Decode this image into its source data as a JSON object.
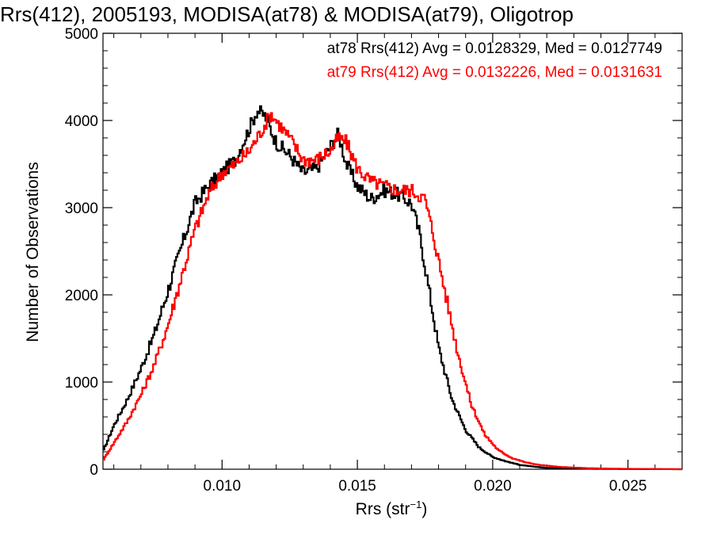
{
  "chart_data": {
    "type": "line",
    "title": "Rrs(412), 2005193, MODISA(at78) & MODISA(at79), Oligotrop",
    "xlabel": {
      "main": "Rrs (str",
      "sup": "−1",
      "close": ")"
    },
    "ylabel": "Number of Observations",
    "xlim": [
      0.0056,
      0.027
    ],
    "ylim": [
      0,
      5000
    ],
    "xticks": [
      0.01,
      0.015,
      0.02,
      0.025
    ],
    "xtick_labels": [
      "0.010",
      "0.015",
      "0.020",
      "0.025"
    ],
    "yticks": [
      0,
      1000,
      2000,
      3000,
      4000,
      5000
    ],
    "ytick_labels": [
      "0",
      "1000",
      "2000",
      "3000",
      "4000",
      "5000"
    ],
    "grid": false,
    "legend_position": "top-right",
    "series": [
      {
        "name": "at78",
        "annotation": "at78 Rrs(412) Avg = 0.0128329, Med = 0.0127749",
        "color": "#000000",
        "x": [
          0.0056,
          0.006,
          0.0065,
          0.007,
          0.0075,
          0.008,
          0.0085,
          0.009,
          0.0095,
          0.01,
          0.0105,
          0.011,
          0.0113,
          0.0116,
          0.012,
          0.0125,
          0.013,
          0.0135,
          0.014,
          0.0143,
          0.0146,
          0.015,
          0.0155,
          0.016,
          0.0165,
          0.017,
          0.0173,
          0.0176,
          0.018,
          0.0185,
          0.019,
          0.0195,
          0.02,
          0.0205,
          0.021,
          0.0215,
          0.022,
          0.023,
          0.024,
          0.025,
          0.027
        ],
        "y": [
          200,
          500,
          800,
          1150,
          1550,
          2050,
          2550,
          3050,
          3250,
          3400,
          3550,
          3900,
          4120,
          4050,
          3750,
          3600,
          3400,
          3450,
          3700,
          3850,
          3500,
          3250,
          3100,
          3200,
          3150,
          3050,
          2700,
          2150,
          1400,
          800,
          450,
          250,
          140,
          90,
          50,
          30,
          15,
          8,
          4,
          2,
          0
        ]
      },
      {
        "name": "at79",
        "annotation": "at79 Rrs(412) Avg = 0.0132226, Med = 0.0131631",
        "color": "#ff0000",
        "x": [
          0.0056,
          0.006,
          0.0065,
          0.007,
          0.0075,
          0.008,
          0.0085,
          0.009,
          0.0095,
          0.01,
          0.0105,
          0.011,
          0.0115,
          0.0118,
          0.012,
          0.0125,
          0.013,
          0.0135,
          0.014,
          0.0143,
          0.0146,
          0.015,
          0.0155,
          0.016,
          0.0165,
          0.017,
          0.0175,
          0.0178,
          0.0182,
          0.0187,
          0.0192,
          0.0197,
          0.0202,
          0.0207,
          0.0212,
          0.0217,
          0.0225,
          0.0235,
          0.0245,
          0.0255,
          0.027
        ],
        "y": [
          100,
          300,
          550,
          850,
          1200,
          1650,
          2200,
          2750,
          3150,
          3400,
          3500,
          3650,
          3900,
          4080,
          4000,
          3800,
          3550,
          3550,
          3650,
          3800,
          3750,
          3450,
          3300,
          3250,
          3200,
          3200,
          3100,
          2700,
          2100,
          1350,
          750,
          400,
          220,
          130,
          80,
          50,
          25,
          12,
          6,
          3,
          0
        ]
      }
    ]
  }
}
